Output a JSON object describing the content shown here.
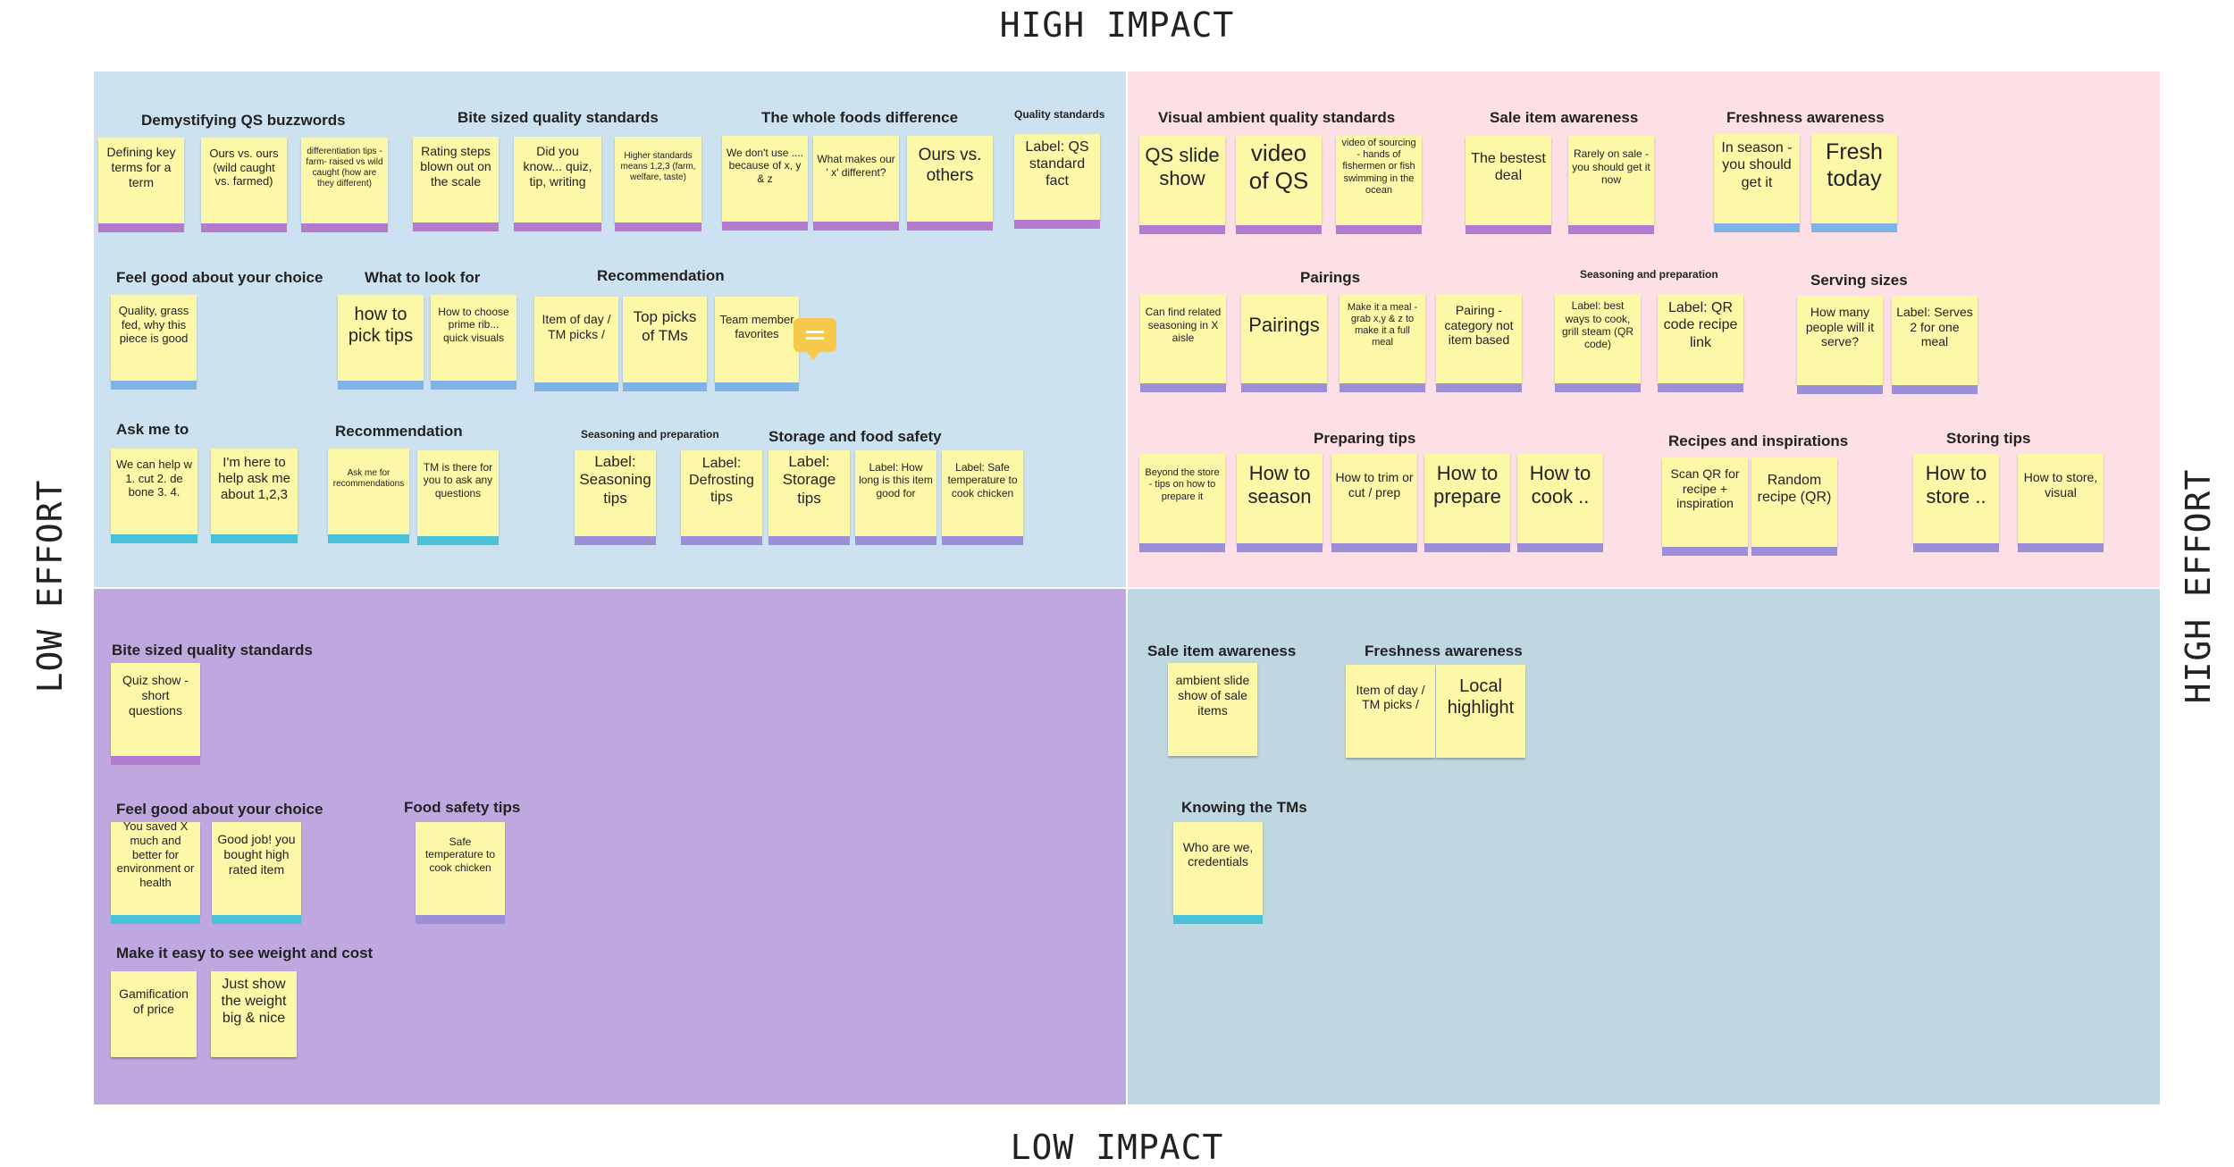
{
  "axes": {
    "top": "HIGH IMPACT",
    "bottom": "LOW IMPACT",
    "left": "LOW EFFORT",
    "right": "HIGH EFFORT"
  },
  "groups": {
    "tl": [
      "Demystifying QS buzzwords",
      "Bite sized quality standards",
      "The whole foods difference",
      "Quality standards",
      "Feel good about your choice",
      "What to look for",
      "Recommendation",
      "Ask me to",
      "Recommendation",
      "Seasoning and preparation",
      "Storage and food safety"
    ],
    "tr": [
      "Visual ambient quality standards",
      "Sale item awareness",
      "Freshness awareness",
      "Pairings",
      "Seasoning and preparation",
      "Serving sizes",
      "Preparing tips",
      "Recipes and inspirations",
      "Storing tips"
    ],
    "bl": [
      "Bite sized quality standards",
      "Feel good about your choice",
      "Food safety tips",
      "Make it easy to see weight and cost"
    ],
    "br": [
      "Sale item awareness",
      "Freshness awareness",
      "Knowing the TMs"
    ]
  },
  "notes": {
    "tl": [
      "Defining key terms for a term",
      "Ours vs. ours (wild caught vs. farmed)",
      "differentiation tips - farm- raised vs wild caught (how are they different)",
      "Rating steps blown out on the scale",
      "Did you know... quiz, tip, writing",
      "Higher standards means 1,2,3 (farm, welfare, taste)",
      "We don't use .... because of x, y & z",
      "What makes our ' x' different?",
      "Ours vs. others",
      "Label: QS standard fact",
      "Quality, grass fed, why this piece is good",
      "how to pick tips",
      "How to choose prime rib... quick visuals",
      "Item of day / TM picks /",
      "Top picks of TMs",
      "Team member favorites",
      "We can help w 1. cut 2. de bone 3. 4.",
      "I'm here to help ask me about 1,2,3",
      "Ask me for recommendations",
      "TM is there for you to ask any questions",
      "Label: Seasoning tips",
      "Label: Defrosting tips",
      "Label: Storage tips",
      "Label: How long is this item good for",
      "Label: Safe temperature to cook chicken"
    ],
    "tr": [
      "QS slide show",
      "video of QS",
      "video of sourcing - hands of fishermen or fish swimming in the ocean",
      "The bestest deal",
      "Rarely on sale - you should get it now",
      "In season - you should get it",
      "Fresh today",
      "Can find related seasoning in X aisle",
      "Pairings",
      "Make it a meal - grab x,y & z to make it a full meal",
      "Pairing - category not item based",
      "Label: best ways to cook, grill steam (QR code)",
      "Label: QR code recipe link",
      "How many people will it serve?",
      "Label: Serves 2 for one meal",
      "Beyond the store - tips on how to prepare it",
      "How to season",
      "How to trim or cut / prep",
      "How to prepare",
      "How to cook ..",
      "Scan QR for recipe + inspiration",
      "Random recipe (QR)",
      "How to store ..",
      "How to store, visual"
    ],
    "bl": [
      "Quiz show - short questions",
      "You saved X much and better for environment or health",
      "Good job! you bought high rated item",
      "Safe temperature to cook chicken",
      "Gamification of price",
      "Just show the weight big & nice"
    ],
    "br": [
      "ambient slide show of sale items",
      "Item of day / TM picks /",
      "Local highlight",
      "Who are we, credentials"
    ]
  },
  "colors": {
    "high_impact_low_effort": "#cde2f1",
    "high_impact_high_effort": "#fce0e5",
    "low_impact_low_effort": "#bfa8e0",
    "low_impact_high_effort": "#bfd7e0",
    "sticky": "#fdf7a8"
  },
  "icons": [
    "chat-comment-icon"
  ]
}
